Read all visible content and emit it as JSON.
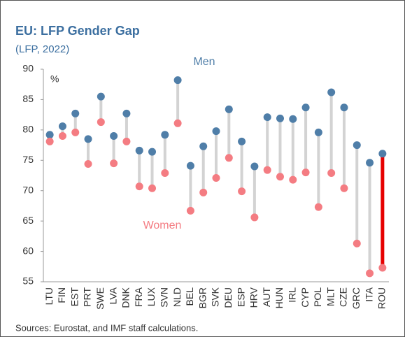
{
  "chart_data": {
    "type": "dumbbell",
    "title": "EU: LFP Gender Gap",
    "subtitle": "(LFP, 2022)",
    "y_label": "%",
    "source": "Sources: Eurostat, and IMF staff calculations.",
    "categories": [
      "LTU",
      "FIN",
      "EST",
      "PRT",
      "SWE",
      "LVA",
      "DNK",
      "FRA",
      "LUX",
      "SVN",
      "NLD",
      "BEL",
      "BGR",
      "SVK",
      "DEU",
      "ESP",
      "HRV",
      "AUT",
      "HUN",
      "IRL",
      "CYP",
      "POL",
      "MLT",
      "CZE",
      "GRC",
      "ITA",
      "ROU"
    ],
    "series": [
      {
        "name": "Men",
        "color": "#4f7ea8",
        "values": [
          79.2,
          80.6,
          82.7,
          78.5,
          85.5,
          79.0,
          82.7,
          76.6,
          76.4,
          79.2,
          88.2,
          74.1,
          77.3,
          79.8,
          83.4,
          78.1,
          74.0,
          82.1,
          81.9,
          81.8,
          83.7,
          79.6,
          86.2,
          83.7,
          77.5,
          74.6,
          76.1
        ]
      },
      {
        "name": "Women",
        "color": "#f47c82",
        "values": [
          78.1,
          79.0,
          79.6,
          74.4,
          81.3,
          74.5,
          78.1,
          70.7,
          70.4,
          72.9,
          81.1,
          66.7,
          69.7,
          72.1,
          75.4,
          69.9,
          65.6,
          73.4,
          72.3,
          71.8,
          73.0,
          67.3,
          72.9,
          70.4,
          61.3,
          56.4,
          57.3
        ]
      }
    ],
    "connector_color": "#d3d3d3",
    "highlight": {
      "category": "ROU",
      "color": "#e60000"
    },
    "ylim": [
      55,
      90
    ],
    "yticks": [
      55,
      60,
      65,
      70,
      75,
      80,
      85,
      90
    ]
  }
}
